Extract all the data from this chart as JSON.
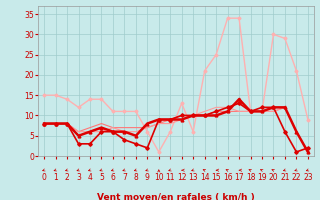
{
  "title": "",
  "xlabel": "Vent moyen/en rafales ( km/h )",
  "ylabel": "",
  "xlim": [
    -0.5,
    23.5
  ],
  "ylim": [
    0,
    37
  ],
  "yticks": [
    0,
    5,
    10,
    15,
    20,
    25,
    30,
    35
  ],
  "xtick_labels": [
    "0",
    "1",
    "2",
    "3",
    "4",
    "5",
    "6",
    "7",
    "8",
    "9",
    "10",
    "11",
    "12",
    "13",
    "14",
    "15",
    "16",
    "17",
    "18",
    "19",
    "20",
    "21",
    "22",
    "23"
  ],
  "bg_color": "#c8eaea",
  "grid_color": "#a0cccc",
  "series": [
    {
      "x": [
        0,
        1,
        2,
        3,
        4,
        5,
        6,
        7,
        8,
        9,
        10,
        11,
        12,
        13,
        14,
        15,
        16,
        17,
        18,
        19,
        20,
        21,
        22,
        23
      ],
      "y": [
        8,
        8,
        8,
        3,
        3,
        6,
        6,
        4,
        3,
        2,
        9,
        9,
        10,
        10,
        10,
        11,
        12,
        13,
        11,
        12,
        12,
        6,
        1,
        2
      ],
      "color": "#dd0000",
      "lw": 1.2,
      "marker": "D",
      "ms": 1.8,
      "zorder": 4
    },
    {
      "x": [
        0,
        1,
        2,
        3,
        4,
        5,
        6,
        7,
        8,
        9,
        10,
        11,
        12,
        13,
        14,
        15,
        16,
        17,
        18,
        19,
        20,
        21,
        22,
        23
      ],
      "y": [
        8,
        8,
        8,
        5,
        6,
        7,
        6,
        6,
        5,
        8,
        9,
        9,
        9,
        10,
        10,
        10,
        11,
        14,
        11,
        11,
        12,
        12,
        6,
        1
      ],
      "color": "#dd0000",
      "lw": 1.8,
      "marker": "^",
      "ms": 2.0,
      "zorder": 5
    },
    {
      "x": [
        0,
        1,
        2,
        3,
        4,
        5,
        6,
        7,
        8,
        9,
        10,
        11,
        12,
        13,
        14,
        15,
        16,
        17,
        18,
        19,
        20,
        21,
        22,
        23
      ],
      "y": [
        15,
        15,
        14,
        12,
        14,
        14,
        11,
        11,
        11,
        6,
        1,
        6,
        13,
        6,
        21,
        25,
        34,
        34,
        11,
        11,
        30,
        29,
        21,
        9
      ],
      "color": "#ffb0b0",
      "lw": 1.0,
      "marker": "D",
      "ms": 1.5,
      "zorder": 2
    },
    {
      "x": [
        0,
        1,
        2,
        3,
        4,
        5,
        6,
        7,
        8,
        9,
        10,
        11,
        12,
        13,
        14,
        15,
        16,
        17,
        18,
        19,
        20,
        21,
        22,
        23
      ],
      "y": [
        8,
        8,
        8,
        6,
        7,
        8,
        7,
        7,
        7,
        7,
        8,
        9,
        10,
        10,
        10,
        11,
        11,
        11,
        11,
        11,
        11,
        12,
        6,
        1
      ],
      "color": "#ff7777",
      "lw": 0.8,
      "marker": null,
      "ms": 0,
      "zorder": 3
    },
    {
      "x": [
        0,
        1,
        2,
        3,
        4,
        5,
        6,
        7,
        8,
        9,
        10,
        11,
        12,
        13,
        14,
        15,
        16,
        17,
        18,
        19,
        20,
        21,
        22,
        23
      ],
      "y": [
        8,
        8,
        8,
        6,
        6,
        6,
        7,
        6,
        6,
        7,
        8,
        8,
        9,
        10,
        11,
        12,
        12,
        11,
        11,
        11,
        11,
        12,
        6,
        1
      ],
      "color": "#ff9999",
      "lw": 0.8,
      "marker": null,
      "ms": 0,
      "zorder": 3
    }
  ],
  "xlabel_color": "#cc0000",
  "tick_color": "#cc0000",
  "label_fontsize": 6.5,
  "tick_fontsize": 5.5,
  "arrow_angles": [
    225,
    225,
    225,
    225,
    225,
    225,
    225,
    225,
    225,
    225,
    0,
    225,
    270,
    225,
    315,
    270,
    315,
    270,
    315,
    315,
    315,
    225,
    225,
    225
  ]
}
